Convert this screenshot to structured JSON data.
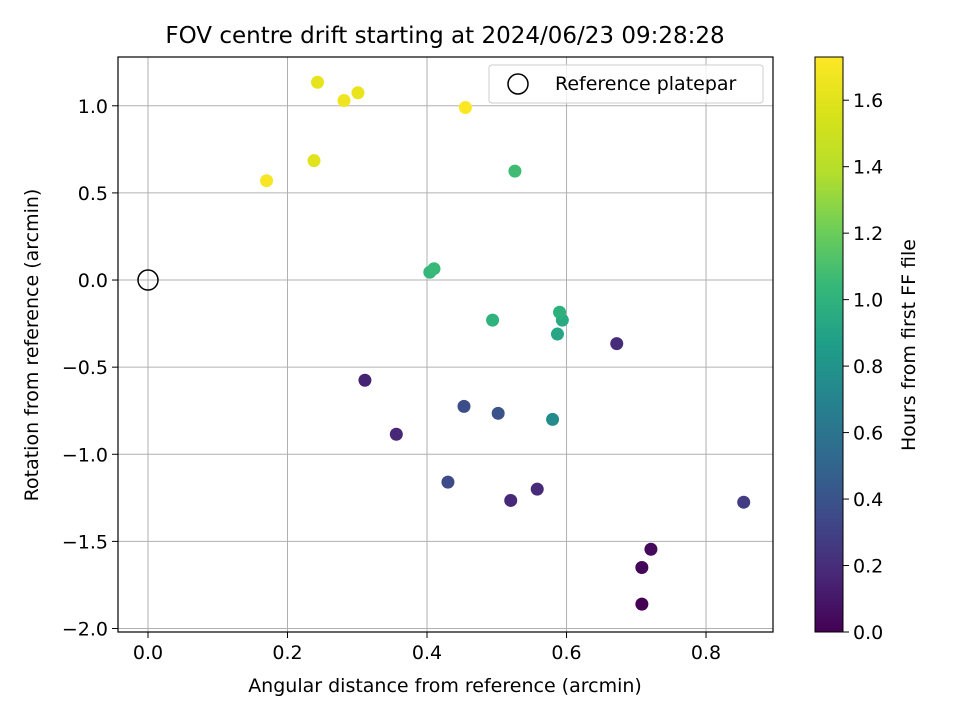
{
  "chart_data": {
    "type": "scatter",
    "title": "FOV centre drift starting at 2024/06/23 09:28:28",
    "xlabel": "Angular distance from reference (arcmin)",
    "ylabel": "Rotation from reference (arcmin)",
    "xlim": [
      -0.043,
      0.896
    ],
    "ylim": [
      -2.02,
      1.28
    ],
    "xticks": [
      0.0,
      0.2,
      0.4,
      0.6,
      0.8
    ],
    "xtick_labels": [
      "0.0",
      "0.2",
      "0.4",
      "0.6",
      "0.8"
    ],
    "yticks": [
      -2.0,
      -1.5,
      -1.0,
      -0.5,
      0.0,
      0.5,
      1.0
    ],
    "ytick_labels": [
      "−2.0",
      "−1.5",
      "−1.0",
      "−0.5",
      "0.0",
      "0.5",
      "1.0"
    ],
    "grid": true,
    "legend": {
      "placement": "top-right",
      "entries": [
        "Reference platepar"
      ]
    },
    "reference_point": {
      "x": 0.0,
      "y": 0.0,
      "label": "Reference platepar"
    },
    "colorbar": {
      "label": "Hours from first FF file",
      "colormap": "viridis",
      "range": [
        0.0,
        1.73
      ],
      "ticks": [
        0.0,
        0.2,
        0.4,
        0.6,
        0.8,
        1.0,
        1.2,
        1.4,
        1.6
      ],
      "tick_labels": [
        "0.0",
        "0.2",
        "0.4",
        "0.6",
        "0.8",
        "1.0",
        "1.2",
        "1.4",
        "1.6"
      ]
    },
    "points": [
      {
        "x": 0.708,
        "y": -1.86,
        "hours": 0.0
      },
      {
        "x": 0.708,
        "y": -1.65,
        "hours": 0.02
      },
      {
        "x": 0.721,
        "y": -1.545,
        "hours": 0.04
      },
      {
        "x": 0.311,
        "y": -0.575,
        "hours": 0.15
      },
      {
        "x": 0.356,
        "y": -0.885,
        "hours": 0.17
      },
      {
        "x": 0.52,
        "y": -1.265,
        "hours": 0.18
      },
      {
        "x": 0.558,
        "y": -1.2,
        "hours": 0.19
      },
      {
        "x": 0.672,
        "y": -0.365,
        "hours": 0.2
      },
      {
        "x": 0.854,
        "y": -1.275,
        "hours": 0.28
      },
      {
        "x": 0.43,
        "y": -1.16,
        "hours": 0.35
      },
      {
        "x": 0.453,
        "y": -0.725,
        "hours": 0.37
      },
      {
        "x": 0.502,
        "y": -0.765,
        "hours": 0.39
      },
      {
        "x": 0.58,
        "y": -0.8,
        "hours": 0.75
      },
      {
        "x": 0.587,
        "y": -0.31,
        "hours": 0.92
      },
      {
        "x": 0.594,
        "y": -0.23,
        "hours": 0.95
      },
      {
        "x": 0.59,
        "y": -0.185,
        "hours": 0.98
      },
      {
        "x": 0.494,
        "y": -0.23,
        "hours": 1.0
      },
      {
        "x": 0.404,
        "y": 0.045,
        "hours": 1.03
      },
      {
        "x": 0.41,
        "y": 0.065,
        "hours": 1.05
      },
      {
        "x": 0.526,
        "y": 0.625,
        "hours": 1.07
      },
      {
        "x": 0.17,
        "y": 0.57,
        "hours": 1.7
      },
      {
        "x": 0.238,
        "y": 0.685,
        "hours": 1.6
      },
      {
        "x": 0.243,
        "y": 1.135,
        "hours": 1.62
      },
      {
        "x": 0.281,
        "y": 1.03,
        "hours": 1.66
      },
      {
        "x": 0.301,
        "y": 1.075,
        "hours": 1.64
      },
      {
        "x": 0.455,
        "y": 0.99,
        "hours": 1.72
      }
    ]
  }
}
